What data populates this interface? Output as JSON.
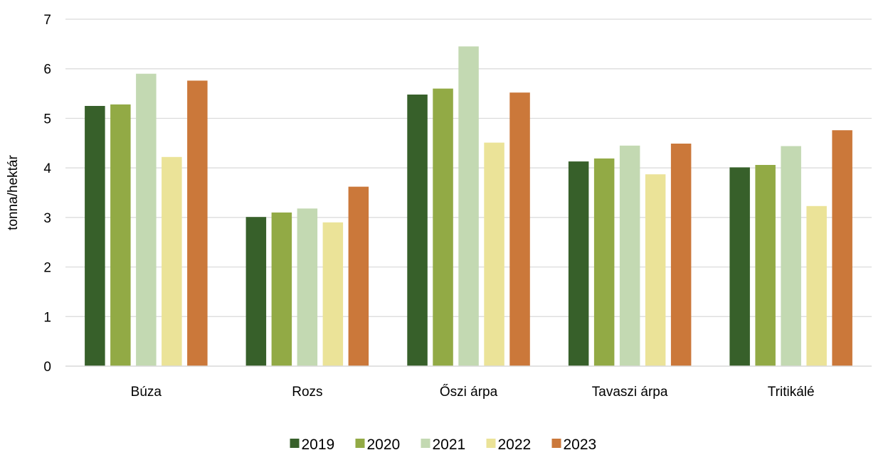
{
  "chart_data": {
    "type": "bar",
    "title": "",
    "xlabel": "",
    "ylabel": "tonna/hektár",
    "ylim": [
      0,
      7
    ],
    "yticks": [
      "0",
      "1",
      "2",
      "3",
      "4",
      "5",
      "6",
      "7"
    ],
    "grid": true,
    "legend_position": "bottom",
    "categories": [
      "Búza",
      "Rozs",
      "Őszi árpa",
      "Tavaszi árpa",
      "Tritikálé"
    ],
    "series": [
      {
        "name": "2019",
        "color": "#37602a",
        "values": [
          5.25,
          3.01,
          5.48,
          4.13,
          4.01
        ]
      },
      {
        "name": "2020",
        "color": "#92aa45",
        "values": [
          5.28,
          3.1,
          5.6,
          4.19,
          4.06
        ]
      },
      {
        "name": "2021",
        "color": "#c3d9b2",
        "values": [
          5.9,
          3.18,
          6.45,
          4.45,
          4.44
        ]
      },
      {
        "name": "2022",
        "color": "#ebe398",
        "values": [
          4.22,
          2.9,
          4.51,
          3.87,
          3.23
        ]
      },
      {
        "name": "2023",
        "color": "#cb783a",
        "values": [
          5.76,
          3.62,
          5.52,
          4.49,
          4.76
        ]
      }
    ]
  }
}
